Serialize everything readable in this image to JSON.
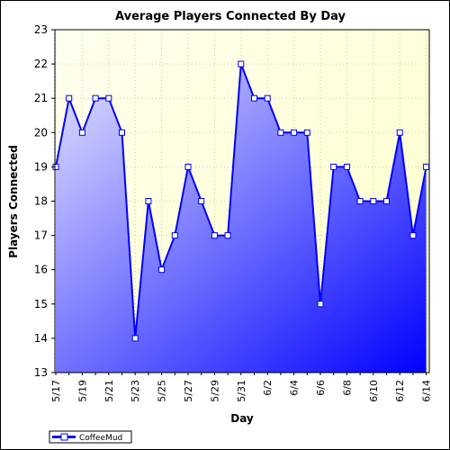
{
  "chart_data": {
    "type": "area",
    "title": "Average Players Connected By Day",
    "xlabel": "Day",
    "ylabel": "Players Connected",
    "ylim": [
      13,
      23
    ],
    "yticks": [
      13,
      14,
      15,
      16,
      17,
      18,
      19,
      20,
      21,
      22,
      23
    ],
    "categories": [
      "5/17",
      "5/18",
      "5/19",
      "5/20",
      "5/21",
      "5/22",
      "5/23",
      "5/24",
      "5/25",
      "5/26",
      "5/27",
      "5/28",
      "5/29",
      "5/30",
      "5/31",
      "6/1",
      "6/2",
      "6/3",
      "6/4",
      "6/5",
      "6/6",
      "6/7",
      "6/8",
      "6/9",
      "6/10",
      "6/11",
      "6/12",
      "6/13",
      "6/14"
    ],
    "xtick_labels": [
      "5/17",
      "5/19",
      "5/21",
      "5/23",
      "5/25",
      "5/27",
      "5/29",
      "5/31",
      "6/2",
      "6/4",
      "6/6",
      "6/8",
      "6/10",
      "6/12",
      "6/14"
    ],
    "series": [
      {
        "name": "CoffeeMud",
        "values": [
          19,
          21,
          20,
          21,
          21,
          20,
          14,
          18,
          16,
          17,
          19,
          18,
          17,
          17,
          22,
          21,
          21,
          20,
          20,
          20,
          15,
          19,
          19,
          18,
          18,
          18,
          20,
          17,
          19
        ]
      }
    ],
    "grid": true,
    "legend_position": "bottom-left",
    "colors": {
      "line": "#0000ff",
      "fill_light": "#e4e4ff",
      "fill_dark": "#0000ff",
      "plot_bg_light": "#fffff0",
      "plot_bg_yellow": "#ffffc8",
      "grid": "#c8c8a0"
    }
  }
}
